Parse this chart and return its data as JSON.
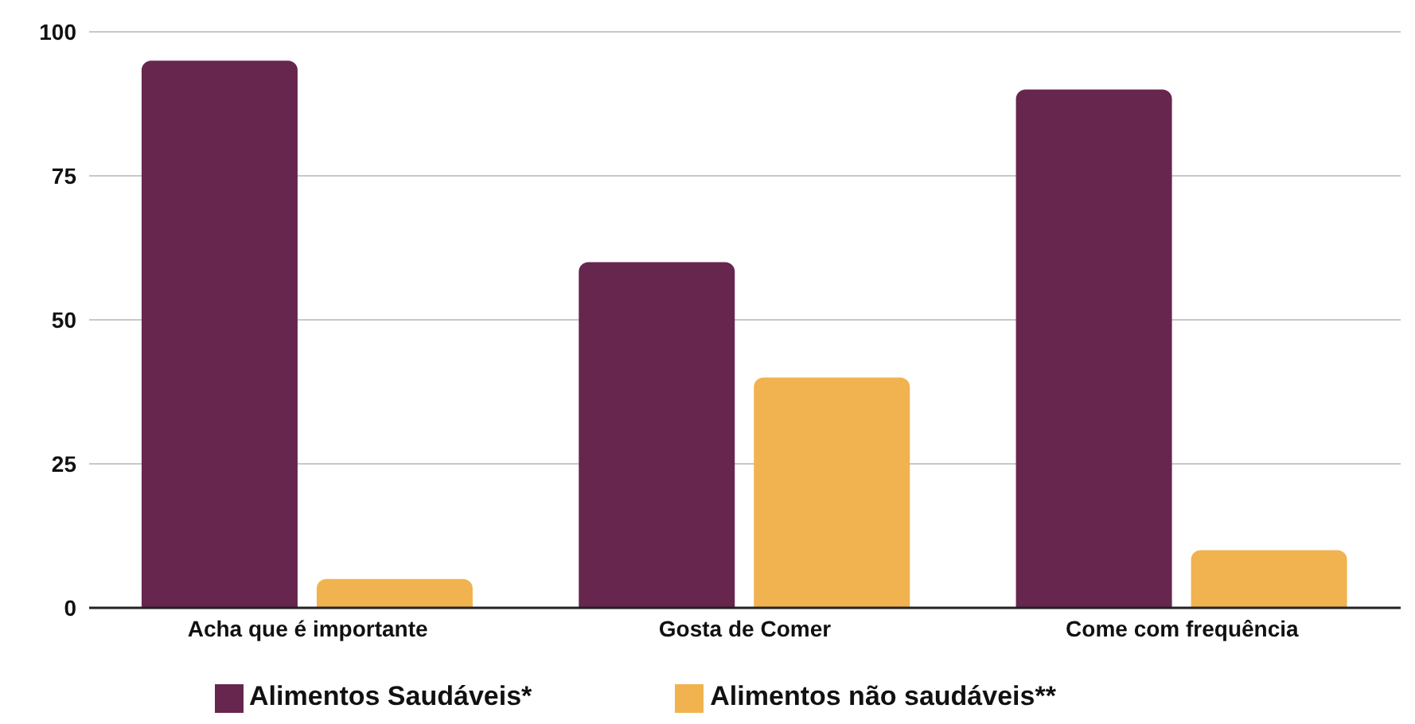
{
  "chart_data": {
    "type": "bar",
    "categories": [
      "Acha que é importante",
      "Gosta de Comer",
      "Come com frequência"
    ],
    "series": [
      {
        "name": "Alimentos Saudáveis*",
        "color": "#66264e",
        "values": [
          95,
          60,
          90
        ]
      },
      {
        "name": "Alimentos não saudáveis**",
        "color": "#f0b34f",
        "values": [
          5,
          40,
          10
        ]
      }
    ],
    "ylim": [
      0,
      100
    ],
    "yticks": [
      0,
      25,
      50,
      75,
      100
    ],
    "grid": "y",
    "legend": "bottom"
  }
}
